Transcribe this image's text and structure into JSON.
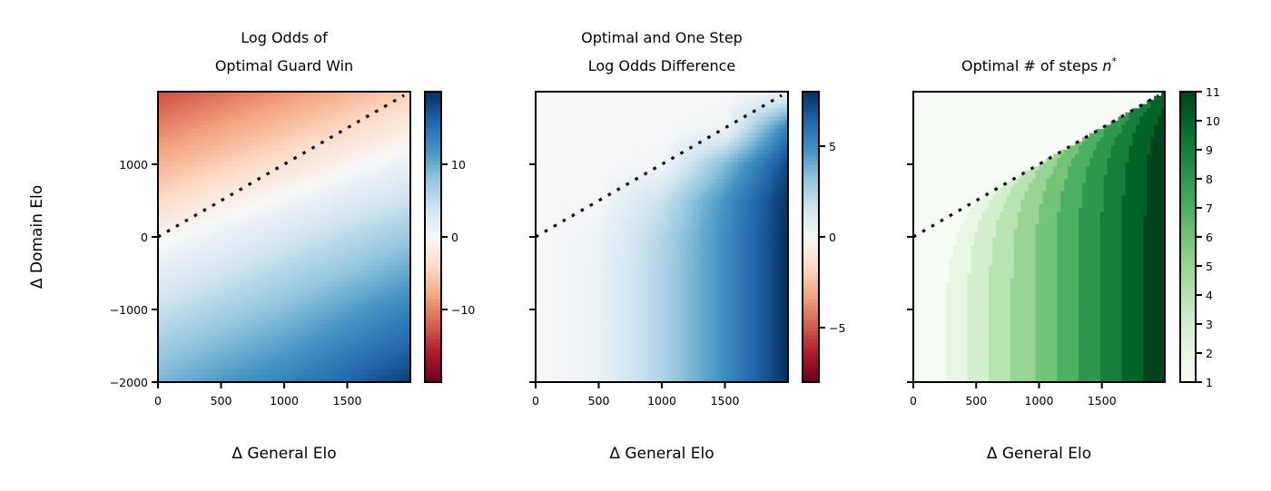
{
  "chart_data": [
    {
      "type": "heatmap",
      "title_lines": [
        "Log Odds of",
        "Optimal Guard Win"
      ],
      "xlabel": "Δ General Elo",
      "ylabel": "Δ Domain Elo",
      "xlim": [
        0,
        2000
      ],
      "ylim": [
        -2000,
        2000
      ],
      "xticks": [
        "0",
        "500",
        "1000",
        "1500"
      ],
      "xtick_values": [
        0,
        500,
        1000,
        1500
      ],
      "yticks": [
        "1000",
        "0",
        "−1000",
        "−2000"
      ],
      "ytick_values": [
        1000,
        0,
        -1000,
        -2000
      ],
      "colormap": "RdBu",
      "clim": [
        -20,
        20
      ],
      "colorbar_ticks": [
        "10",
        "0",
        "−10"
      ],
      "colorbar_tick_values": [
        10,
        0,
        -10
      ],
      "grid_x": [
        0,
        500,
        1000,
        1500,
        2000
      ],
      "grid_y": [
        2000,
        1500,
        1000,
        500,
        0,
        -500,
        -1000,
        -1500,
        -2000
      ],
      "values": [
        [
          -13,
          -11,
          -9,
          -7,
          -5
        ],
        [
          -10,
          -8,
          -6,
          -4,
          -1.5
        ],
        [
          -7,
          -5,
          -3,
          -0.5,
          1.5
        ],
        [
          -4,
          -1.5,
          0.5,
          2.5,
          4.5
        ],
        [
          -0.5,
          1.5,
          3.5,
          5.5,
          7.5
        ],
        [
          2,
          4,
          6,
          8,
          10.5
        ],
        [
          4.5,
          6.5,
          8.5,
          11,
          13.5
        ],
        [
          7,
          9,
          11,
          13.5,
          16
        ],
        [
          9,
          11.5,
          13.5,
          16,
          19
        ]
      ],
      "reference_line": {
        "style": "dotted",
        "color": "#000000",
        "points": [
          [
            0,
            0
          ],
          [
            1950,
            1950
          ]
        ]
      }
    },
    {
      "type": "heatmap",
      "title_lines": [
        "Optimal and One Step",
        "Log Odds Difference"
      ],
      "xlabel": "Δ General Elo",
      "xlim": [
        0,
        2000
      ],
      "ylim": [
        -2000,
        2000
      ],
      "xticks": [
        "0",
        "500",
        "1000",
        "1500"
      ],
      "xtick_values": [
        0,
        500,
        1000,
        1500
      ],
      "ytick_values": [
        1000,
        0,
        -1000,
        -2000
      ],
      "colormap": "RdBu",
      "clim": [
        -8,
        8
      ],
      "colorbar_ticks": [
        "5",
        "0",
        "−5"
      ],
      "colorbar_tick_values": [
        5,
        0,
        -5
      ],
      "grid_x": [
        0,
        500,
        1000,
        1500,
        2000
      ],
      "grid_y": [
        2000,
        1500,
        1000,
        500,
        0,
        -500,
        -1000,
        -1500,
        -2000
      ],
      "values": [
        [
          0,
          0,
          0,
          0,
          0.3
        ],
        [
          0,
          0,
          0,
          0.3,
          5.5
        ],
        [
          0,
          0,
          0.2,
          3.5,
          7.3
        ],
        [
          0,
          0.1,
          1.8,
          4.8,
          7.9
        ],
        [
          0,
          0.4,
          2.4,
          5,
          8
        ],
        [
          0,
          0.5,
          2.5,
          5,
          8
        ],
        [
          0,
          0.5,
          2.5,
          5,
          8
        ],
        [
          0,
          0.5,
          2.5,
          5,
          8
        ],
        [
          0,
          0.5,
          2.5,
          5,
          8
        ]
      ],
      "reference_line": {
        "style": "dotted",
        "color": "#000000",
        "points": [
          [
            0,
            0
          ],
          [
            1950,
            1950
          ]
        ]
      }
    },
    {
      "type": "heatmap",
      "title": "Optimal # of steps ",
      "title_var": "n",
      "title_sup": "*",
      "xlabel": "Δ General Elo",
      "xlim": [
        0,
        2000
      ],
      "ylim": [
        -2000,
        2000
      ],
      "xticks": [
        "0",
        "500",
        "1000",
        "1500"
      ],
      "xtick_values": [
        0,
        500,
        1000,
        1500
      ],
      "ytick_values": [
        1000,
        0,
        -1000,
        -2000
      ],
      "colormap": "Greens",
      "clim": [
        1,
        11
      ],
      "colorbar_ticks": [
        "1",
        "2",
        "3",
        "4",
        "5",
        "6",
        "7",
        "8",
        "9",
        "10",
        "11"
      ],
      "colorbar_tick_values": [
        1,
        2,
        3,
        4,
        5,
        6,
        7,
        8,
        9,
        10,
        11
      ],
      "levels": [
        1,
        2,
        3,
        4,
        5,
        6,
        7,
        8,
        9,
        10,
        11
      ],
      "level_colors": [
        "#f7fcf5",
        "#e8f6e3",
        "#d3eecd",
        "#b8e3b2",
        "#98d594",
        "#73c476",
        "#4bb062",
        "#2f984f",
        "#157f3b",
        "#006428",
        "#00441b"
      ],
      "step_boundaries_general_elo": [
        250,
        425,
        600,
        780,
        960,
        1130,
        1310,
        1490,
        1660,
        1840
      ],
      "reference_line": {
        "style": "dotted",
        "color": "#000000",
        "points": [
          [
            0,
            0
          ],
          [
            1950,
            1950
          ]
        ]
      }
    }
  ]
}
